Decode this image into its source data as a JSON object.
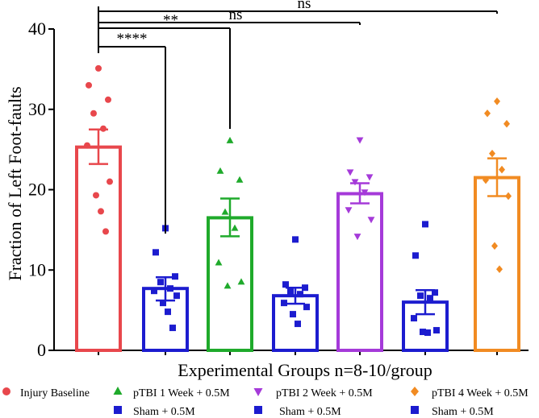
{
  "chart_data": {
    "type": "bar",
    "title": "",
    "xlabel": "Experimental Groups n=8-10/group",
    "ylabel": "Fraction of Left Foot-faults",
    "ylim": [
      0,
      40
    ],
    "yticks": [
      "0",
      "10",
      "20",
      "30",
      "40"
    ],
    "bars": [
      {
        "name": "Injury Baseline",
        "mean": 25.3,
        "sem_low": 23.2,
        "sem_high": 27.5,
        "color": "#e8474c",
        "marker": "circle",
        "points": [
          35.1,
          33,
          31.2,
          29.5,
          27.6,
          25.5,
          21,
          19.3,
          17.3,
          14.8
        ]
      },
      {
        "name": "Sham + 0.5M",
        "mean": 7.7,
        "sem_low": 6.2,
        "sem_high": 9.1,
        "color": "#1c1ccf",
        "marker": "square",
        "points": [
          15.2,
          12.2,
          9.2,
          8.5,
          7.7,
          7.4,
          6.8,
          5.9,
          4.8,
          2.8
        ]
      },
      {
        "name": "pTBI 1 Week + 0.5M",
        "mean": 16.5,
        "sem_low": 14.2,
        "sem_high": 18.9,
        "color": "#1faa2b",
        "marker": "triangle-up",
        "points": [
          26.1,
          22.3,
          21.2,
          17.2,
          15.2,
          10.9,
          8.5,
          8
        ]
      },
      {
        "name": "Sham + 0.5M",
        "mean": 6.8,
        "sem_low": 5.8,
        "sem_high": 7.8,
        "color": "#1c1ccf",
        "marker": "square",
        "points": [
          13.8,
          8.2,
          7.8,
          7.3,
          7,
          5.9,
          5.4,
          4.5,
          3.3
        ]
      },
      {
        "name": "pTBI 2 Week + 0.5M",
        "mean": 19.5,
        "sem_low": 18.3,
        "sem_high": 20.8,
        "color": "#a53ad9",
        "marker": "triangle-down",
        "points": [
          26.2,
          22.2,
          21.6,
          21,
          19.7,
          17.5,
          16.3,
          14.2
        ]
      },
      {
        "name": "Sham + 0.5M",
        "mean": 6,
        "sem_low": 4.5,
        "sem_high": 7.5,
        "color": "#1c1ccf",
        "marker": "square",
        "points": [
          15.7,
          11.8,
          7.2,
          6.8,
          6.5,
          4,
          2.5,
          2.3,
          2.2
        ]
      },
      {
        "name": "pTBI 4 Week + 0.5M",
        "mean": 21.5,
        "sem_low": 19.2,
        "sem_high": 23.9,
        "color": "#f18b22",
        "marker": "diamond",
        "points": [
          31,
          29.5,
          28.2,
          24.5,
          22.5,
          21.2,
          19.2,
          13,
          10.1
        ]
      }
    ],
    "significance": [
      {
        "label": "****",
        "from": 0,
        "to": 1,
        "level": 37.6
      },
      {
        "label": "**",
        "from": 0,
        "to": 2,
        "level": 40.2
      },
      {
        "label": "ns",
        "from": 0,
        "to": 4,
        "level": 40.9
      },
      {
        "label": "ns",
        "from": 0,
        "to": 6,
        "level": 42.3
      }
    ],
    "legend": {
      "placement": "bottom",
      "entries": [
        {
          "label": "Injury Baseline",
          "color": "#e8474c",
          "marker": "circle"
        },
        {
          "label": "pTBI 1 Week + 0.5M",
          "color": "#1faa2b",
          "marker": "triangle-up"
        },
        {
          "label": "pTBI 2 Week + 0.5M",
          "color": "#a53ad9",
          "marker": "triangle-down"
        },
        {
          "label": "pTBI 4 Week + 0.5M",
          "color": "#f18b22",
          "marker": "diamond"
        },
        {
          "label": "Sham + 0.5M",
          "color": "#1c1ccf",
          "marker": "square"
        },
        {
          "label": "Sham + 0.5M",
          "color": "#1c1ccf",
          "marker": "square"
        },
        {
          "label": "Sham + 0.5M",
          "color": "#1c1ccf",
          "marker": "square"
        }
      ]
    }
  }
}
